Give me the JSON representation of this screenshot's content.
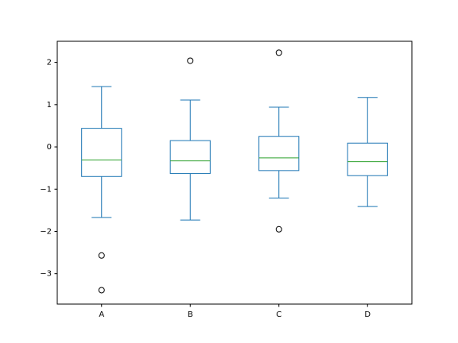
{
  "chart_data": {
    "type": "boxplot",
    "title": "",
    "xlabel": "",
    "ylabel": "",
    "categories": [
      "A",
      "B",
      "C",
      "D"
    ],
    "ylim": [
      -3.72,
      2.5
    ],
    "yticks": [
      -3,
      -2,
      -1,
      0,
      1,
      2
    ],
    "ytick_labels": [
      "−3",
      "−2",
      "−1",
      "0",
      "1",
      "2"
    ],
    "grid": false,
    "legend": "none",
    "box_color": "#1f77b4",
    "median_color": "#2ca02c",
    "flier_color": "#000000",
    "boxes": [
      {
        "category": "A",
        "whisker_low": -1.67,
        "q1": -0.7,
        "median": -0.31,
        "q3": 0.44,
        "whisker_high": 1.43,
        "fliers": [
          -2.57,
          -3.39
        ]
      },
      {
        "category": "B",
        "whisker_low": -1.73,
        "q1": -0.63,
        "median": -0.33,
        "q3": 0.15,
        "whisker_high": 1.11,
        "fliers": [
          2.04
        ]
      },
      {
        "category": "C",
        "whisker_low": -1.21,
        "q1": -0.56,
        "median": -0.26,
        "q3": 0.25,
        "whisker_high": 0.94,
        "fliers": [
          2.23,
          -1.95
        ]
      },
      {
        "category": "D",
        "whisker_low": -1.41,
        "q1": -0.68,
        "median": -0.35,
        "q3": 0.09,
        "whisker_high": 1.17,
        "fliers": []
      }
    ]
  }
}
